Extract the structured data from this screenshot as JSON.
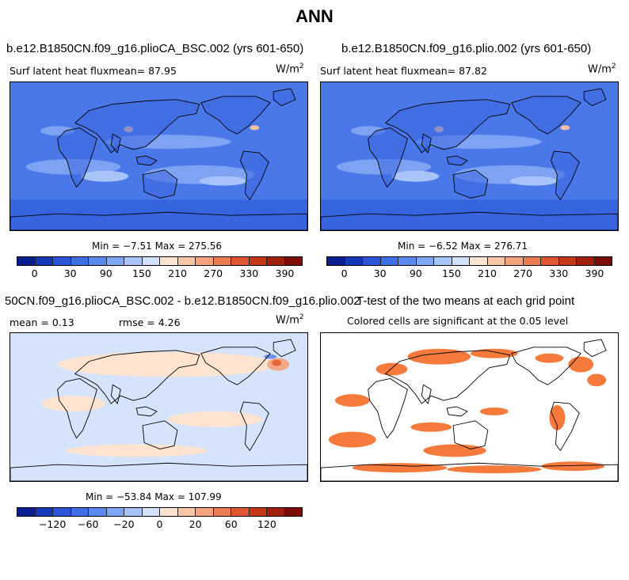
{
  "main_title": "ANN",
  "panels": {
    "top_left": {
      "title": "b.e12.B1850CN.f09_g16.plioCA_BSC.002 (yrs 601-650)",
      "subtitle": "Surf latent heat fluxmean=  87.95",
      "units": "W/m",
      "units_exp": "2",
      "minmax": "Min =  −7.51 Max = 275.56"
    },
    "top_right": {
      "title": "b.e12.B1850CN.f09_g16.plio.002 (yrs 601-650)",
      "subtitle": "Surf latent heat fluxmean=  87.82",
      "units": "W/m",
      "units_exp": "2",
      "minmax": "Min =  −6.52 Max = 276.71"
    },
    "bottom_left": {
      "title": "50CN.f09_g16.plioCA_BSC.002 - b.e12.B1850CN.f09_g16.plio.002",
      "mean_label": "mean =   0.13",
      "rmse_label": "rmse =   4.26",
      "units": "W/m",
      "units_exp": "2",
      "minmax": "Min = −53.84 Max = 107.99"
    },
    "bottom_right": {
      "title": "T-test of the two means at each grid point",
      "subtitle": "Colored cells are significant at the 0.05 level",
      "sig_color": "#f57a3c"
    }
  },
  "colorbar_abs": {
    "colors": [
      "#0a1f8f",
      "#1438b8",
      "#2b55d6",
      "#3d6fe6",
      "#5a8af0",
      "#7fa6f5",
      "#a9c4f8",
      "#d3e1fb",
      "#fde3d0",
      "#f9c6a6",
      "#f4a37c",
      "#ec7c52",
      "#de5530",
      "#c43818",
      "#a0200c",
      "#7a0c04"
    ],
    "tick_labels": [
      "0",
      "30",
      "90",
      "150",
      "210",
      "270",
      "330",
      "390"
    ]
  },
  "colorbar_diff": {
    "colors": [
      "#0a1f8f",
      "#1438b8",
      "#2b55d6",
      "#3d6fe6",
      "#5a8af0",
      "#7fa6f5",
      "#a9c4f8",
      "#d3e1fb",
      "#fde3d0",
      "#f9c6a6",
      "#f4a37c",
      "#ec7c52",
      "#de5530",
      "#c43818",
      "#a0200c",
      "#7a0c04"
    ],
    "tick_labels": [
      "−120",
      "−60",
      "−20",
      "0",
      "20",
      "60",
      "120"
    ]
  },
  "map_colors": {
    "ocean_deep": "#2e5bdc",
    "ocean_mid": "#4a78e8",
    "ocean_light": "#7ea3f3",
    "ocean_pale": "#a9c4f8",
    "land_abs": "#3a66df",
    "diff_bg": "#d6e4fb",
    "diff_pos": "#fde3d0"
  }
}
